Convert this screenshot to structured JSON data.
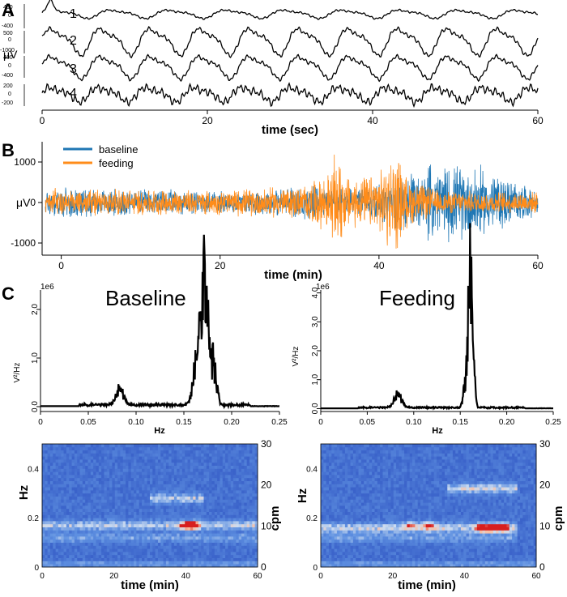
{
  "colors": {
    "baseline": "#1f77b4",
    "feeding": "#ff8c1a",
    "trace": "#000000",
    "spec_low": "#2f55c8",
    "spec_high": "#d71e1e"
  },
  "panel_letters": [
    "A",
    "B",
    "C"
  ],
  "chart_data": [
    {
      "id": "A",
      "type": "line",
      "xlabel": "time (sec)",
      "xlim": [
        0,
        60
      ],
      "xticks": [
        0,
        20,
        40,
        60
      ],
      "ylabel": "μV",
      "traces": [
        {
          "label": "1",
          "yticks": [
            "400",
            "0",
            "-400"
          ],
          "ylim": [
            -400,
            400
          ],
          "amplitude": 140,
          "period": 7.0,
          "noise": 0.15
        },
        {
          "label": "2",
          "yticks": [
            "500",
            "0",
            "-1000"
          ],
          "ylim": [
            -1000,
            500
          ],
          "amplitude": 800,
          "period": 6.0,
          "noise": 0.1
        },
        {
          "label": "3",
          "yticks": [
            "400",
            "0",
            "-400"
          ],
          "ylim": [
            -400,
            400
          ],
          "amplitude": 320,
          "period": 6.0,
          "noise": 0.12
        },
        {
          "label": "4",
          "yticks": [
            "200",
            "0",
            "-200"
          ],
          "ylim": [
            -250,
            250
          ],
          "amplitude": 150,
          "period": 5.8,
          "noise": 0.35
        }
      ]
    },
    {
      "id": "B",
      "type": "line",
      "xlabel": "time (min)",
      "xlim": [
        -2,
        60
      ],
      "xticks": [
        0,
        20,
        40,
        60
      ],
      "ylabel": "μV",
      "ylim": [
        -1300,
        1450
      ],
      "yticks": [
        1000,
        0,
        -1000
      ],
      "legend": {
        "placement": "top-left",
        "entries": [
          "baseline",
          "feeding"
        ]
      },
      "series": [
        {
          "name": "baseline",
          "envelope": [
            [
              -2,
              380
            ],
            [
              10,
              360
            ],
            [
              20,
              300
            ],
            [
              26,
              340
            ],
            [
              30,
              450
            ],
            [
              34,
              400
            ],
            [
              38,
              380
            ],
            [
              42,
              700
            ],
            [
              48,
              820
            ],
            [
              54,
              850
            ],
            [
              60,
              320
            ]
          ],
          "bursts": [
            [
              46,
              53,
              1000
            ]
          ]
        },
        {
          "name": "feeding",
          "envelope": [
            [
              -2,
              380
            ],
            [
              10,
              350
            ],
            [
              20,
              320
            ],
            [
              26,
              400
            ],
            [
              30,
              420
            ],
            [
              34,
              820
            ],
            [
              38,
              650
            ],
            [
              40,
              850
            ],
            [
              42,
              1000
            ],
            [
              44,
              600
            ],
            [
              48,
              300
            ],
            [
              60,
              280
            ]
          ],
          "bursts": [
            [
              34,
              35.5,
              1200
            ],
            [
              41,
              43,
              1250
            ]
          ]
        }
      ]
    },
    {
      "id": "C-baseline-psd",
      "type": "line",
      "title": "Baseline",
      "xlabel": "Hz",
      "ylabel": "V²/Hz",
      "yscale": "1e6",
      "xlim": [
        0,
        0.25
      ],
      "ylim": [
        -0.1,
        2.4
      ],
      "xticks": [
        "0",
        "0.05",
        "0.10",
        "0.15",
        "0.20",
        "0.25"
      ],
      "yticks": [
        "0.0",
        "1.0",
        "2.0"
      ],
      "peaks": [
        {
          "center": 0.083,
          "height": 0.32,
          "width": 0.006
        },
        {
          "center": 0.172,
          "height": 2.25,
          "width": 0.004
        },
        {
          "center": 0.165,
          "height": 1.1,
          "width": 0.006
        },
        {
          "center": 0.18,
          "height": 0.9,
          "width": 0.005
        }
      ]
    },
    {
      "id": "C-feeding-psd",
      "type": "line",
      "title": "Feeding",
      "xlabel": "Hz",
      "ylabel": "V²/Hz",
      "yscale": "1e6",
      "xlim": [
        0,
        0.25
      ],
      "ylim": [
        -0.1,
        4.1
      ],
      "xticks": [
        "0",
        "0.05",
        "0.10",
        "0.15",
        "0.20",
        "0.25"
      ],
      "yticks": [
        "0.0",
        "1.0",
        "2.0",
        "3.0",
        "4.0"
      ],
      "peaks": [
        {
          "center": 0.083,
          "height": 0.45,
          "width": 0.006
        },
        {
          "center": 0.16,
          "height": 3.7,
          "width": 0.003
        },
        {
          "center": 0.163,
          "height": 1.8,
          "width": 0.003
        },
        {
          "center": 0.155,
          "height": 0.6,
          "width": 0.003
        }
      ]
    },
    {
      "id": "C-baseline-spectrogram",
      "type": "heatmap",
      "xlabel": "time (min)",
      "ylabel": "Hz",
      "y2label": "cpm",
      "xlim": [
        0,
        60
      ],
      "ylim": [
        0,
        0.5
      ],
      "xticks": [
        0,
        20,
        40,
        60
      ],
      "yticks": [
        "0",
        "0.2",
        "0.4"
      ],
      "y2ticks": [
        "0",
        "10",
        "20",
        "30"
      ],
      "bands": [
        {
          "freq": 0.17,
          "start": 0,
          "end": 60,
          "strength": 0.45
        },
        {
          "freq": 0.28,
          "start": 30,
          "end": 45,
          "strength": 0.45
        },
        {
          "freq": 0.12,
          "start": 0,
          "end": 60,
          "strength": 0.25
        }
      ],
      "hotspots": [
        {
          "t": 42,
          "f": 0.17,
          "strength": 1.0
        },
        {
          "t": 40,
          "f": 0.17,
          "strength": 0.7
        }
      ]
    },
    {
      "id": "C-feeding-spectrogram",
      "type": "heatmap",
      "xlabel": "time (min)",
      "ylabel": "Hz",
      "y2label": "cpm",
      "xlim": [
        0,
        60
      ],
      "ylim": [
        0,
        0.5
      ],
      "xticks": [
        0,
        20,
        40,
        60
      ],
      "yticks": [
        "0",
        "0.2",
        "0.4"
      ],
      "y2ticks": [
        "0",
        "10",
        "20",
        "30"
      ],
      "bands": [
        {
          "freq": 0.16,
          "start": 0,
          "end": 55,
          "strength": 0.5
        },
        {
          "freq": 0.32,
          "start": 35,
          "end": 55,
          "strength": 0.5
        },
        {
          "freq": 0.12,
          "start": 0,
          "end": 55,
          "strength": 0.25
        }
      ],
      "hotspots": [
        {
          "t": 45,
          "f": 0.16,
          "strength": 1.0
        },
        {
          "t": 48,
          "f": 0.16,
          "strength": 1.0
        },
        {
          "t": 51,
          "f": 0.16,
          "strength": 0.9
        },
        {
          "t": 30,
          "f": 0.17,
          "strength": 0.6
        },
        {
          "t": 25,
          "f": 0.17,
          "strength": 0.5
        }
      ]
    }
  ]
}
